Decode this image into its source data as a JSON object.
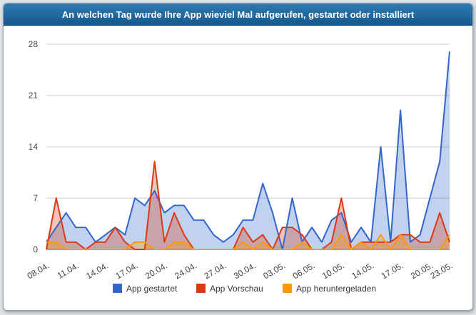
{
  "header": {
    "title": "An welchen Tag wurde Ihre App wieviel Mal aufgerufen, gestartet oder installiert"
  },
  "chart_data": {
    "type": "area",
    "title": "An welchen Tag wurde Ihre App wieviel Mal aufgerufen, gestartet oder installiert",
    "xlabel": "",
    "ylabel": "",
    "ylim": [
      0,
      28
    ],
    "yticks": [
      "0",
      "7",
      "14",
      "21",
      "28"
    ],
    "grid": true,
    "legend": "bottom",
    "x_tick_labels": [
      "08.04.",
      "11.04.",
      "14.04.",
      "17.04.",
      "20.04.",
      "24.04.",
      "27.04.",
      "30.04.",
      "03.05.",
      "06.05.",
      "10.05.",
      "14.05.",
      "17.05.",
      "20.05.",
      "23.05."
    ],
    "x_tick_index": [
      0,
      3,
      6,
      9,
      12,
      15,
      18,
      21,
      24,
      27,
      30,
      33,
      36,
      39,
      41
    ],
    "x_count": 42,
    "series": [
      {
        "name": "App gestartet",
        "color": "#3366cc",
        "values": [
          1,
          3,
          5,
          3,
          3,
          1,
          2,
          3,
          2,
          7,
          6,
          8,
          5,
          6,
          6,
          4,
          4,
          2,
          1,
          2,
          4,
          4,
          9,
          5,
          0,
          7,
          1,
          3,
          1,
          4,
          5,
          1,
          3,
          1,
          14,
          1,
          19,
          1,
          2,
          7,
          12,
          27
        ]
      },
      {
        "name": "App Vorschau",
        "color": "#dc3912",
        "values": [
          0,
          7,
          1,
          1,
          0,
          1,
          1,
          3,
          1,
          0,
          0,
          12,
          1,
          5,
          2,
          0,
          0,
          0,
          0,
          0,
          3,
          1,
          2,
          0,
          3,
          3,
          2,
          0,
          0,
          1,
          7,
          0,
          1,
          1,
          1,
          1,
          2,
          2,
          1,
          1,
          5,
          1
        ]
      },
      {
        "name": "App heruntergeladen",
        "color": "#ff9900",
        "values": [
          1,
          1,
          0,
          0,
          0,
          0,
          0,
          0,
          0,
          1,
          1,
          0,
          0,
          1,
          1,
          0,
          0,
          0,
          0,
          0,
          1,
          0,
          1,
          0,
          0,
          0,
          1,
          0,
          0,
          0,
          2,
          0,
          1,
          0,
          2,
          0,
          2,
          0,
          0,
          0,
          0,
          2
        ]
      }
    ]
  }
}
